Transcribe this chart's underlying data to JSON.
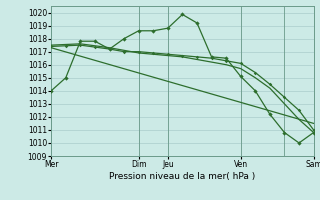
{
  "background_color": "#cceae6",
  "grid_color": "#aacccc",
  "line_color": "#2d6e2d",
  "title": "Pression niveau de la mer( hPa )",
  "ylim": [
    1009,
    1020.5
  ],
  "yticks": [
    1009,
    1010,
    1011,
    1012,
    1013,
    1014,
    1015,
    1016,
    1017,
    1018,
    1019,
    1020
  ],
  "xtick_labels": [
    "Mer",
    "Dim",
    "Jeu",
    "Ven",
    "Sam"
  ],
  "xtick_positions": [
    0,
    6,
    8,
    13,
    18
  ],
  "line1_x": [
    0,
    1,
    2,
    3,
    4,
    5,
    6,
    7,
    8,
    9,
    10,
    11,
    12,
    13,
    14,
    15,
    16,
    17,
    18
  ],
  "line1_y": [
    1014.0,
    1015.0,
    1017.8,
    1017.8,
    1017.2,
    1018.0,
    1018.6,
    1018.6,
    1018.8,
    1019.85,
    1019.2,
    1016.6,
    1016.5,
    1015.1,
    1014.0,
    1012.2,
    1010.8,
    1010.0,
    1010.8
  ],
  "line2_x": [
    0,
    1,
    2,
    3,
    4,
    5,
    6,
    7,
    8,
    9,
    10,
    11,
    12,
    13,
    14,
    15,
    16,
    17,
    18
  ],
  "line2_y": [
    1017.4,
    1017.45,
    1017.5,
    1017.35,
    1017.2,
    1017.0,
    1017.0,
    1016.9,
    1016.8,
    1016.7,
    1016.6,
    1016.5,
    1016.3,
    1016.1,
    1015.4,
    1014.5,
    1013.5,
    1012.5,
    1011.0
  ],
  "line3_x": [
    0,
    1,
    2,
    3,
    4,
    5,
    6,
    7,
    8,
    9,
    10,
    11,
    12,
    13,
    14,
    15,
    16,
    17,
    18
  ],
  "line3_y": [
    1017.5,
    1017.55,
    1017.6,
    1017.45,
    1017.3,
    1017.1,
    1016.9,
    1016.8,
    1016.7,
    1016.6,
    1016.4,
    1016.2,
    1016.0,
    1015.7,
    1015.0,
    1014.2,
    1013.0,
    1011.8,
    1010.8
  ],
  "line4_x": [
    0,
    18
  ],
  "line4_y": [
    1017.3,
    1011.5
  ],
  "vline_positions": [
    6,
    8,
    13,
    16
  ]
}
